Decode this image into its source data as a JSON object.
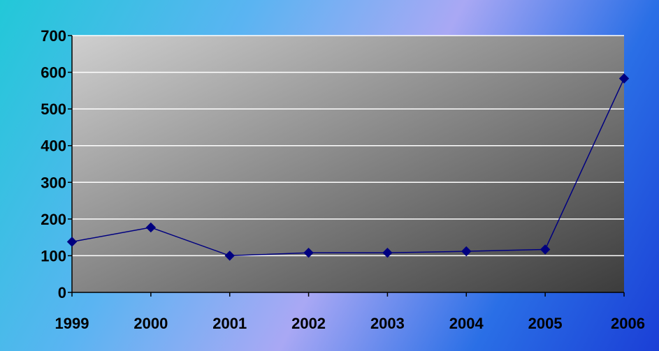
{
  "chart_data": {
    "type": "line",
    "title": "",
    "xlabel": "",
    "ylabel": "",
    "categories": [
      "1999",
      "2000",
      "2001",
      "2002",
      "2003",
      "2004",
      "2005",
      "2006"
    ],
    "series": [
      {
        "values": [
          138,
          177,
          100,
          108,
          108,
          112,
          117,
          583
        ]
      }
    ],
    "ylim": [
      0,
      700
    ],
    "yticks": [
      "0",
      "100",
      "200",
      "300",
      "400",
      "500",
      "600",
      "700"
    ],
    "grid": true,
    "legend": "none",
    "colors": {
      "line": "#000080",
      "marker": "#000080",
      "gridline": "#ffffff",
      "plot_light": "#cfcfcf",
      "plot_dark": "#3c3c3c"
    },
    "marker_shape": "diamond"
  }
}
